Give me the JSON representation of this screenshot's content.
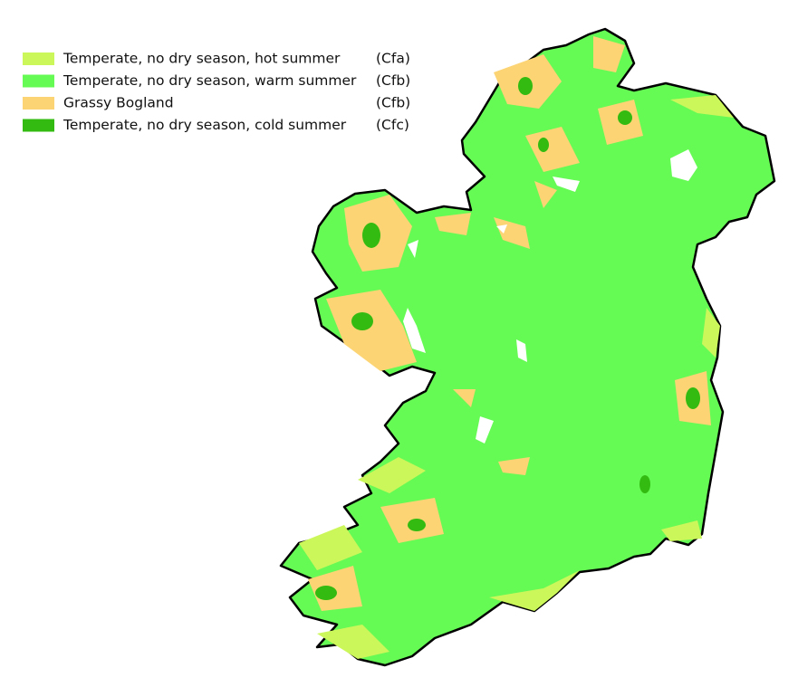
{
  "legend": {
    "items": [
      {
        "label": "Temperate, no dry season, hot summer",
        "code": "(Cfa)",
        "color": "#ccf75a"
      },
      {
        "label": "Temperate, no dry season, warm summer",
        "code": "(Cfb)",
        "color": "#66fa55"
      },
      {
        "label": "Grassy Bogland",
        "code": "(Cfb)",
        "color": "#fcd474"
      },
      {
        "label": "Temperate, no dry season, cold summer",
        "code": "(Cfc)",
        "color": "#33bb11"
      }
    ]
  }
}
